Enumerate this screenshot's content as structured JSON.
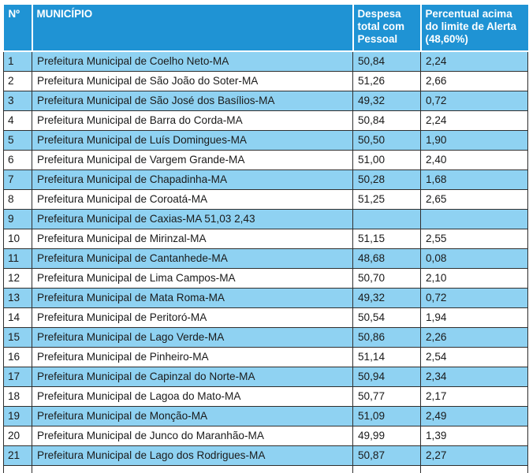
{
  "header": {
    "num": "Nº",
    "municipio": "MUNICÍPIO",
    "despesa": [
      "Despesa",
      "total com",
      "Pessoal"
    ],
    "percentual": [
      "Percentual acima",
      "do limite de Alerta",
      "(48,60%)"
    ]
  },
  "rows": [
    {
      "num": "1",
      "municipio": "Prefeitura Municipal de Coelho Neto-MA",
      "despesa": "50,84",
      "percentual": "2,24"
    },
    {
      "num": "2",
      "municipio": "Prefeitura Municipal de São João do Soter-MA",
      "despesa": "51,26",
      "percentual": "2,66"
    },
    {
      "num": "3",
      "municipio": "Prefeitura Municipal de São José dos Basílios-MA",
      "despesa": "49,32",
      "percentual": "0,72"
    },
    {
      "num": "4",
      "municipio": "Prefeitura Municipal de Barra do Corda-MA",
      "despesa": "50,84",
      "percentual": "2,24"
    },
    {
      "num": "5",
      "municipio": "Prefeitura Municipal de Luís Domingues-MA",
      "despesa": "50,50",
      "percentual": "1,90"
    },
    {
      "num": "6",
      "municipio": "Prefeitura Municipal de Vargem Grande-MA",
      "despesa": "51,00",
      "percentual": "2,40"
    },
    {
      "num": "7",
      "municipio": "Prefeitura Municipal de Chapadinha-MA",
      "despesa": "50,28",
      "percentual": "1,68"
    },
    {
      "num": "8",
      "municipio": "Prefeitura Municipal de Coroatá-MA",
      "despesa": "51,25",
      "percentual": "2,65"
    },
    {
      "num": "9",
      "municipio": "Prefeitura Municipal de Caxias-MA 51,03 2,43",
      "despesa": "",
      "percentual": ""
    },
    {
      "num": "10",
      "municipio": "Prefeitura Municipal de Mirinzal-MA",
      "despesa": "51,15",
      "percentual": "2,55"
    },
    {
      "num": "11",
      "municipio": "Prefeitura Municipal de Cantanhede-MA",
      "despesa": "48,68",
      "percentual": "0,08"
    },
    {
      "num": "12",
      "municipio": "Prefeitura Municipal de Lima Campos-MA",
      "despesa": "50,70",
      "percentual": "2,10"
    },
    {
      "num": "13",
      "municipio": "Prefeitura Municipal de Mata Roma-MA",
      "despesa": "49,32",
      "percentual": "0,72"
    },
    {
      "num": "14",
      "municipio": "Prefeitura Municipal de Peritoró-MA",
      "despesa": "50,54",
      "percentual": "1,94"
    },
    {
      "num": "15",
      "municipio": "Prefeitura Municipal de Lago Verde-MA",
      "despesa": "50,86",
      "percentual": "2,26"
    },
    {
      "num": "16",
      "municipio": "Prefeitura Municipal de Pinheiro-MA",
      "despesa": "51,14",
      "percentual": "2,54"
    },
    {
      "num": "17",
      "municipio": "Prefeitura Municipal de Capinzal do Norte-MA",
      "despesa": "50,94",
      "percentual": "2,34"
    },
    {
      "num": "18",
      "municipio": "Prefeitura Municipal de Lagoa do Mato-MA",
      "despesa": "50,77",
      "percentual": "2,17"
    },
    {
      "num": "19",
      "municipio": "Prefeitura Municipal de Monção-MA",
      "despesa": "51,09",
      "percentual": "2,49"
    },
    {
      "num": "20",
      "municipio": "Prefeitura Municipal de Junco do Maranhão-MA",
      "despesa": "49,99",
      "percentual": "1,39"
    },
    {
      "num": "21",
      "municipio": "Prefeitura Municipal de Lago dos Rodrigues-MA",
      "despesa": "50,87",
      "percentual": "2,27"
    },
    {
      "num": "",
      "municipio": "",
      "despesa": "",
      "percentual": ""
    }
  ],
  "colors": {
    "header_bg": "#1f93d4",
    "alt_row_bg": "#8fd2f2",
    "plain_row_bg": "#ffffff",
    "border": "#2f2f2f"
  }
}
